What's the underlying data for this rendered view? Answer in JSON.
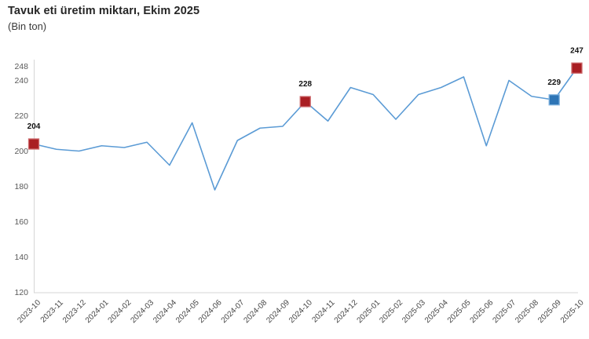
{
  "header": {
    "title": "Tavuk eti üretim miktarı, Ekim 2025",
    "subtitle": "(Bin ton)"
  },
  "colors": {
    "line": "#5B9BD5",
    "marker_red_fill": "#A91E23",
    "marker_red_stroke": "#CD6A6D",
    "marker_blue_fill": "#2E75B6",
    "marker_blue_stroke": "#7FB2DF",
    "axis_line": "#D6D6D6",
    "ytick_text": "#595959",
    "xtick_text": "#454545",
    "point_label_text": "#111111"
  },
  "chart_data": {
    "type": "line",
    "title": "Tavuk eti üretim miktarı, Ekim 2025",
    "subtitle": "(Bin ton)",
    "ylabel": "Bin ton",
    "xlabel": "",
    "grid": false,
    "legend": "none",
    "ylim": [
      120,
      248
    ],
    "yticks": [
      120,
      140,
      160,
      180,
      200,
      220,
      240,
      248
    ],
    "x": [
      "2023-10",
      "2023-11",
      "2023-12",
      "2024-01",
      "2024-02",
      "2024-03",
      "2024-04",
      "2024-05",
      "2024-06",
      "2024-07",
      "2024-08",
      "2024-09",
      "2024-10",
      "2024-11",
      "2024-12",
      "2025-01",
      "2025-02",
      "2025-03",
      "2025-04",
      "2025-05",
      "2025-06",
      "2025-07",
      "2025-08",
      "2025-09",
      "2025-10"
    ],
    "series": [
      {
        "name": "Tavuk eti üretim miktarı (Bin ton)",
        "values": [
          204,
          201,
          200,
          203,
          202,
          205,
          192,
          216,
          178,
          206,
          213,
          214,
          228,
          217,
          236,
          232,
          218,
          232,
          236,
          242,
          203,
          240,
          231,
          229,
          247
        ]
      }
    ],
    "annotated_points": [
      {
        "x": "2023-10",
        "value": 204,
        "label": "204",
        "marker": "red"
      },
      {
        "x": "2024-10",
        "value": 228,
        "label": "228",
        "marker": "red"
      },
      {
        "x": "2025-09",
        "value": 229,
        "label": "229",
        "marker": "blue"
      },
      {
        "x": "2025-10",
        "value": 247,
        "label": "247",
        "marker": "red"
      }
    ]
  }
}
